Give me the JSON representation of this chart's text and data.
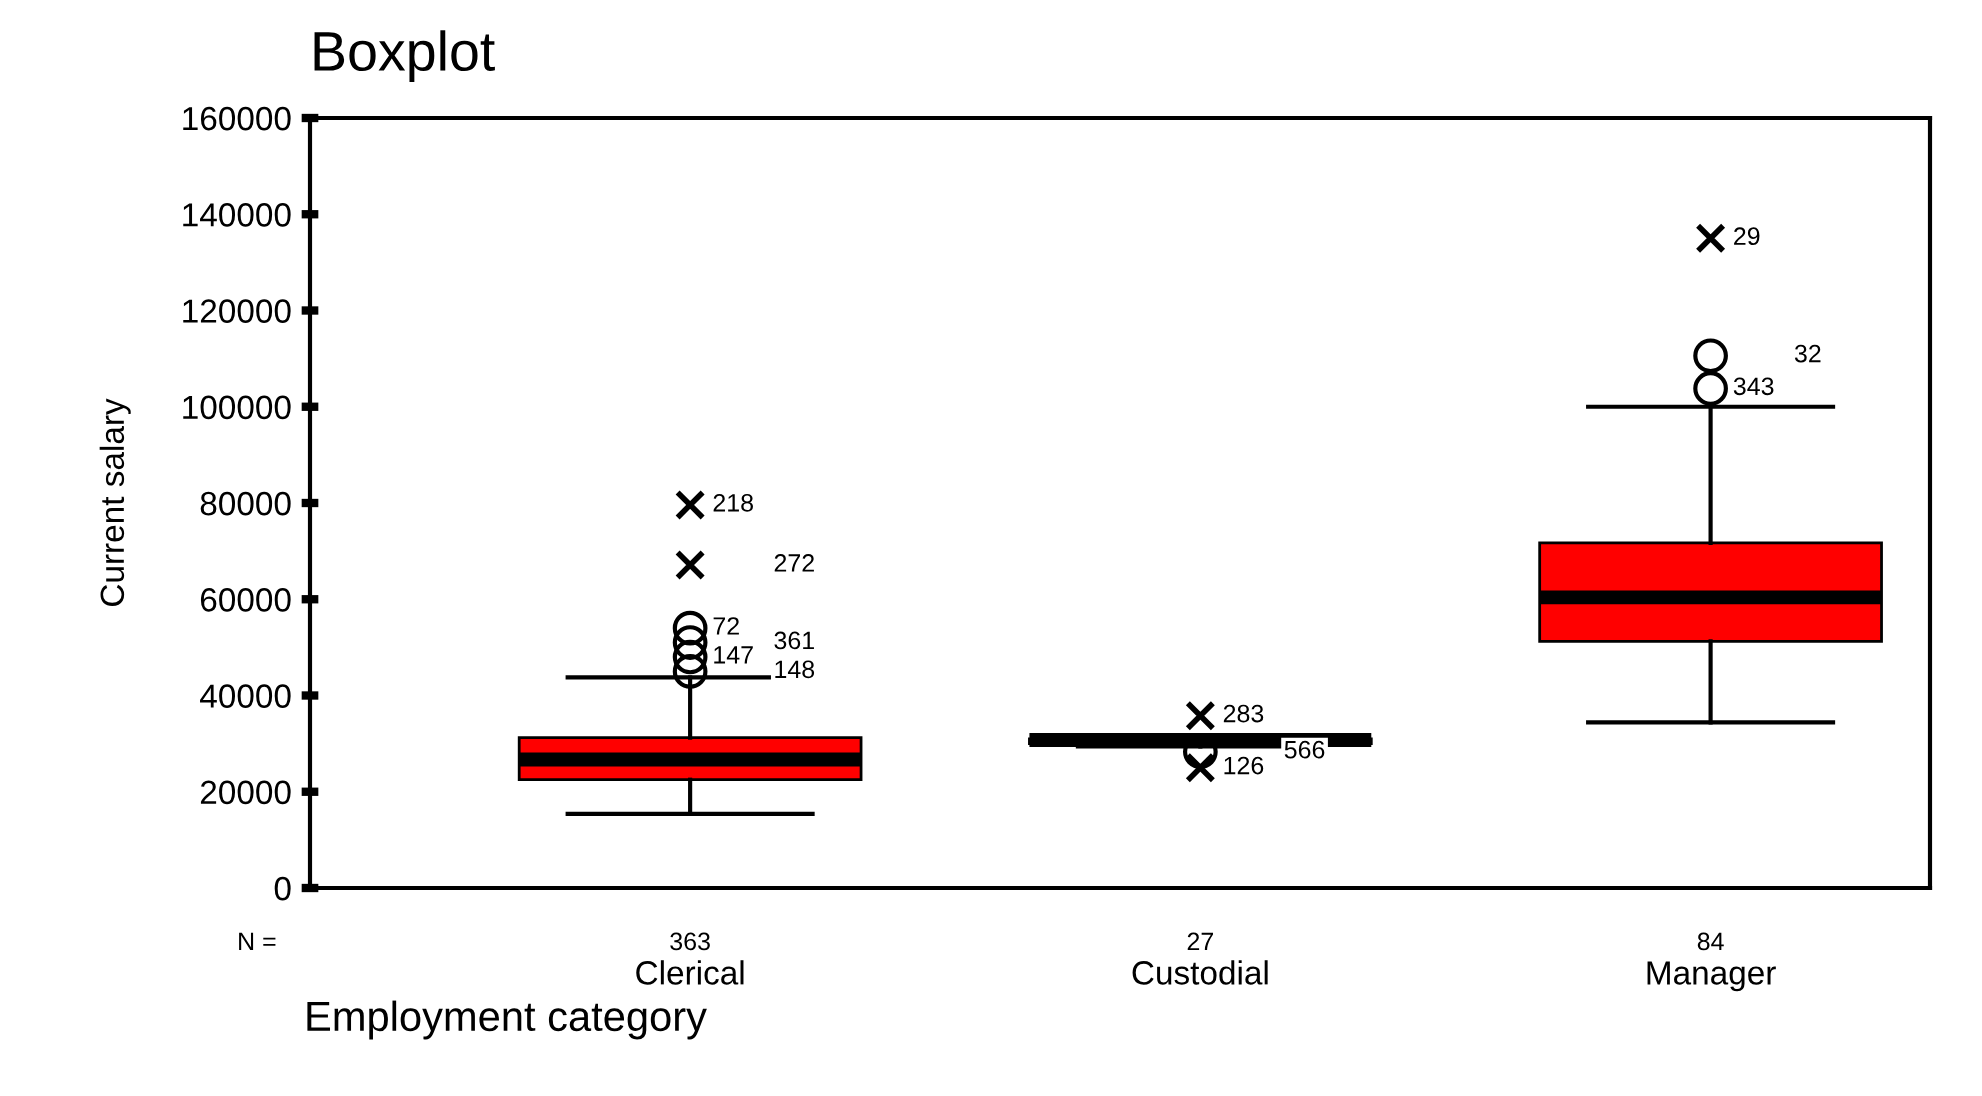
{
  "chart_data": {
    "type": "box",
    "title": "Boxplot",
    "xlabel": "Employment category",
    "ylabel": "Current salary",
    "categories": [
      "Clerical",
      "Custodial",
      "Manager"
    ],
    "boxes": [
      {
        "low": 15400,
        "q1": 22500,
        "median": 26700,
        "q3": 31250,
        "high": 43750,
        "outliers": [
          79600,
          67100,
          54000,
          51000,
          48000,
          45000
        ]
      },
      {
        "low": 29400,
        "q1": 30000,
        "median": 30750,
        "q3": 31000,
        "high": 31200,
        "outliers": [
          35800,
          28300,
          25000
        ]
      },
      {
        "low": 34400,
        "q1": 51250,
        "median": 60400,
        "q3": 71700,
        "high": 100000,
        "outliers": [
          135000,
          110600,
          103800
        ]
      }
    ],
    "color": "#ff0000",
    "ylim": [
      0,
      160000
    ],
    "yticks": [
      0,
      20000,
      40000,
      60000,
      80000,
      100000,
      120000,
      140000,
      160000
    ],
    "grid": false,
    "legend": false,
    "annotations": [
      "N =",
      "363",
      "27",
      "84",
      "218",
      "272",
      "72",
      "361",
      "147",
      "148",
      "283",
      "566",
      "126",
      "29",
      "32",
      "343"
    ]
  }
}
